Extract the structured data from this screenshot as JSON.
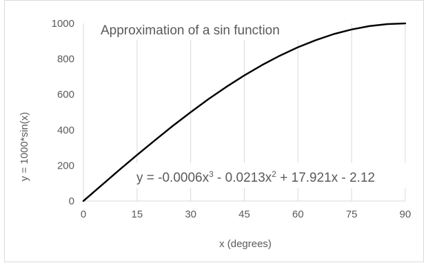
{
  "chart_data": {
    "type": "line",
    "title": "Approximation of a sin function",
    "xlabel": "x (degrees)",
    "ylabel": "y = 1000*sin(x)",
    "xlim": [
      0,
      90
    ],
    "ylim": [
      0,
      1000
    ],
    "x_ticks": [
      0,
      15,
      30,
      45,
      60,
      75,
      90
    ],
    "x_tick_labels": [
      "0",
      "15",
      "30",
      "45",
      "60",
      "75",
      "90"
    ],
    "y_ticks": [
      0,
      200,
      400,
      600,
      800,
      1000
    ],
    "y_tick_labels": [
      "0",
      "200",
      "400",
      "600",
      "800",
      "1000"
    ],
    "grid": {
      "vertical": true,
      "horizontal": false
    },
    "legend": "none",
    "series": [
      {
        "x": [
          0,
          5,
          10,
          15,
          20,
          25,
          30,
          35,
          40,
          45,
          50,
          55,
          60,
          65,
          70,
          75,
          80,
          85,
          90
        ],
        "values": [
          0,
          87,
          174,
          259,
          342,
          423,
          500,
          574,
          643,
          707,
          766,
          819,
          866,
          906,
          940,
          966,
          985,
          996,
          1000
        ],
        "color": "#000000"
      }
    ],
    "annotations": {
      "equation": {
        "prefix": "y = -0.0006x",
        "exp1": "3",
        "middle": " - 0.0213x",
        "exp2": "2",
        "suffix": " + 17.921x - 2.12"
      }
    },
    "colors": {
      "line": "#000000",
      "grid": "#d9d9d9",
      "text": "#595959"
    }
  }
}
